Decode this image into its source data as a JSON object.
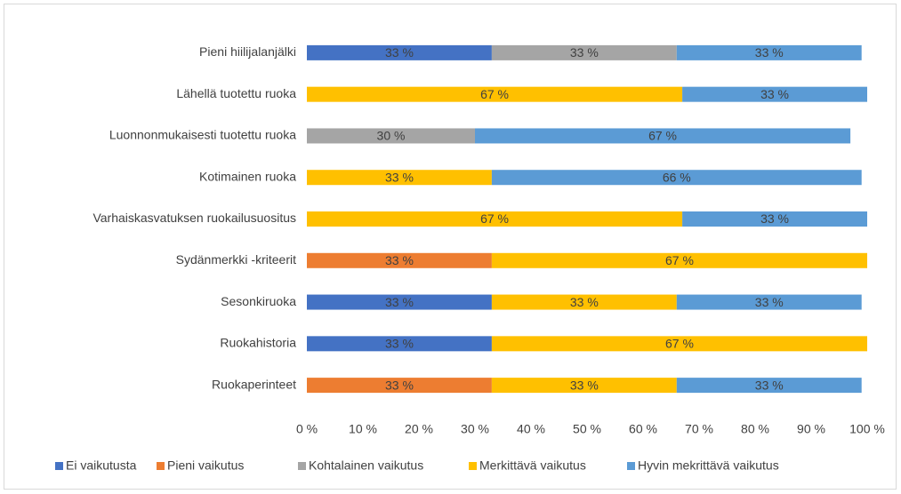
{
  "chart_data": {
    "type": "stacked-barh",
    "categories": [
      "Pieni hiilijalanjälki",
      "Lähellä tuotettu ruoka",
      "Luonnonmukaisesti tuotettu ruoka",
      "Kotimainen ruoka",
      "Varhaiskasvatuksen ruokailusuositus",
      "Sydänmerkki -kriteerit",
      "Sesonkiruoka",
      "Ruokahistoria",
      "Ruokaperinteet"
    ],
    "series": [
      {
        "name": "Ei vaikutusta",
        "color": "#4472c4",
        "values": [
          33,
          null,
          null,
          null,
          null,
          null,
          33,
          33,
          null
        ],
        "value_labels": [
          "33 %",
          null,
          null,
          null,
          null,
          null,
          "33 %",
          "33 %",
          null
        ]
      },
      {
        "name": "Pieni vaikutus",
        "color": "#ed7d31",
        "values": [
          null,
          null,
          null,
          null,
          null,
          33,
          null,
          null,
          33
        ],
        "value_labels": [
          null,
          null,
          null,
          null,
          null,
          "33 %",
          null,
          null,
          "33 %"
        ]
      },
      {
        "name": "Kohtalainen vaikutus",
        "color": "#a5a5a5",
        "values": [
          33,
          null,
          30,
          null,
          null,
          null,
          null,
          null,
          null
        ],
        "value_labels": [
          "33 %",
          null,
          "30 %",
          null,
          null,
          null,
          null,
          null,
          null
        ]
      },
      {
        "name": "Merkittävä vaikutus",
        "color": "#ffc000",
        "values": [
          null,
          67,
          null,
          33,
          67,
          67,
          33,
          67,
          33
        ],
        "value_labels": [
          null,
          "67 %",
          null,
          "33 %",
          "67 %",
          "67 %",
          "33 %",
          "67 %",
          "33 %"
        ]
      },
      {
        "name": "Hyvin mekrittävä vaikutus",
        "color": "#5b9bd5",
        "values": [
          33,
          33,
          67,
          66,
          33,
          null,
          33,
          null,
          33
        ],
        "value_labels": [
          "33 %",
          "33 %",
          "67 %",
          "66 %",
          "33 %",
          null,
          "33 %",
          null,
          "33 %"
        ]
      }
    ],
    "xlim": [
      0,
      100
    ],
    "xticks": [
      {
        "value": 0,
        "label": "0 %"
      },
      {
        "value": 10,
        "label": "10 %"
      },
      {
        "value": 20,
        "label": "20 %"
      },
      {
        "value": 30,
        "label": "30 %"
      },
      {
        "value": 40,
        "label": "40 %"
      },
      {
        "value": 50,
        "label": "50 %"
      },
      {
        "value": 60,
        "label": "60 %"
      },
      {
        "value": 70,
        "label": "70 %"
      },
      {
        "value": 80,
        "label": "80 %"
      },
      {
        "value": 90,
        "label": "90 %"
      },
      {
        "value": 100,
        "label": "100 %"
      }
    ],
    "legend": "bottom"
  }
}
